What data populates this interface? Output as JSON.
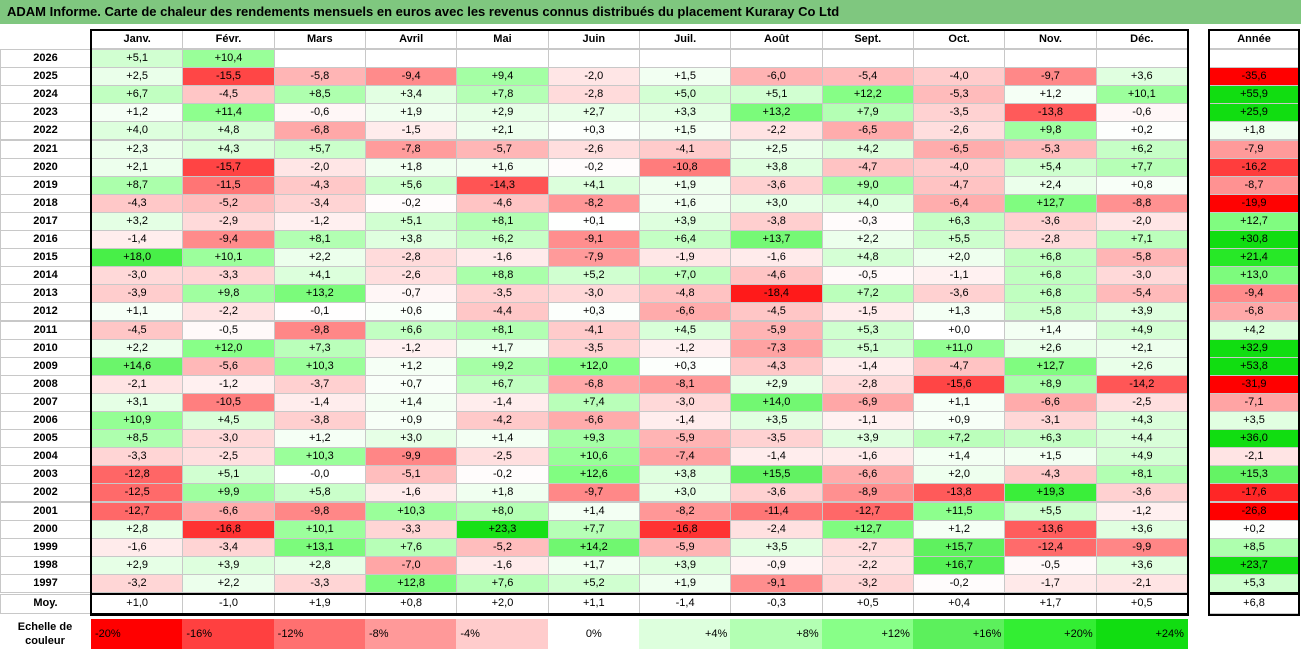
{
  "title": "ADAM Informe. Carte de chaleur des rendements mensuels en euros avec les revenus connus distribués du placement Kuraray Co Ltd",
  "chart_data": {
    "type": "heatmap",
    "title": "ADAM Informe. Carte de chaleur des rendements mensuels en euros avec les revenus connus distribués du placement Kuraray Co Ltd",
    "columns": [
      "Janv.",
      "Févr.",
      "Mars",
      "Avril",
      "Mai",
      "Juin",
      "Juil.",
      "Août",
      "Sept.",
      "Oct.",
      "Nov.",
      "Déc."
    ],
    "year_column_label": "Année",
    "average_row_label": "Moy.",
    "rows": [
      {
        "year": "2026",
        "values": [
          "+5,1",
          "+10,4",
          "",
          "",
          "",
          "",
          "",
          "",
          "",
          "",
          "",
          ""
        ],
        "annual": ""
      },
      {
        "year": "2025",
        "values": [
          "+2,5",
          "-15,5",
          "-5,8",
          "-9,4",
          "+9,4",
          "-2,0",
          "+1,5",
          "-6,0",
          "-5,4",
          "-4,0",
          "-9,7",
          "+3,6"
        ],
        "annual": "-35,6"
      },
      {
        "year": "2024",
        "values": [
          "+6,7",
          "-4,5",
          "+8,5",
          "+3,4",
          "+7,8",
          "-2,8",
          "+5,0",
          "+5,1",
          "+12,2",
          "-5,3",
          "+1,2",
          "+10,1"
        ],
        "annual": "+55,9"
      },
      {
        "year": "2023",
        "values": [
          "+1,2",
          "+11,4",
          "-0,6",
          "+1,9",
          "+2,9",
          "+2,7",
          "+3,3",
          "+13,2",
          "+7,9",
          "-3,5",
          "-13,8",
          "-0,6"
        ],
        "annual": "+25,9"
      },
      {
        "year": "2022",
        "values": [
          "+4,0",
          "+4,8",
          "-6,8",
          "-1,5",
          "+2,1",
          "+0,3",
          "+1,5",
          "-2,2",
          "-6,5",
          "-2,6",
          "+9,8",
          "+0,2"
        ],
        "annual": "+1,8"
      },
      {
        "year": "2021",
        "values": [
          "+2,3",
          "+4,3",
          "+5,7",
          "-7,8",
          "-5,7",
          "-2,6",
          "-4,1",
          "+2,5",
          "+4,2",
          "-6,5",
          "-5,3",
          "+6,2"
        ],
        "annual": "-7,9"
      },
      {
        "year": "2020",
        "values": [
          "+2,1",
          "-15,7",
          "-2,0",
          "+1,8",
          "+1,6",
          "-0,2",
          "-10,8",
          "+3,8",
          "-4,7",
          "-4,0",
          "+5,4",
          "+7,7"
        ],
        "annual": "-16,2"
      },
      {
        "year": "2019",
        "values": [
          "+8,7",
          "-11,5",
          "-4,3",
          "+5,6",
          "-14,3",
          "+4,1",
          "+1,9",
          "-3,6",
          "+9,0",
          "-4,7",
          "+2,4",
          "+0,8"
        ],
        "annual": "-8,7"
      },
      {
        "year": "2018",
        "values": [
          "-4,3",
          "-5,2",
          "-3,4",
          "-0,2",
          "-4,6",
          "-8,2",
          "+1,6",
          "+3,0",
          "+4,0",
          "-6,4",
          "+12,7",
          "-8,8"
        ],
        "annual": "-19,9"
      },
      {
        "year": "2017",
        "values": [
          "+3,2",
          "-2,9",
          "-1,2",
          "+5,1",
          "+8,1",
          "+0,1",
          "+3,9",
          "-3,8",
          "-0,3",
          "+6,3",
          "-3,6",
          "-2,0"
        ],
        "annual": "+12,7"
      },
      {
        "year": "2016",
        "values": [
          "-1,4",
          "-9,4",
          "+8,1",
          "+3,8",
          "+6,2",
          "-9,1",
          "+6,4",
          "+13,7",
          "+2,2",
          "+5,5",
          "-2,8",
          "+7,1"
        ],
        "annual": "+30,8"
      },
      {
        "year": "2015",
        "values": [
          "+18,0",
          "+10,1",
          "+2,2",
          "-2,8",
          "-1,6",
          "-7,9",
          "-1,9",
          "-1,6",
          "+4,8",
          "+2,0",
          "+6,8",
          "-5,8"
        ],
        "annual": "+21,4"
      },
      {
        "year": "2014",
        "values": [
          "-3,0",
          "-3,3",
          "+4,1",
          "-2,6",
          "+8,8",
          "+5,2",
          "+7,0",
          "-4,6",
          "-0,5",
          "-1,1",
          "+6,8",
          "-3,0"
        ],
        "annual": "+13,0"
      },
      {
        "year": "2013",
        "values": [
          "-3,9",
          "+9,8",
          "+13,2",
          "-0,7",
          "-3,5",
          "-3,0",
          "-4,8",
          "-18,4",
          "+7,2",
          "-3,6",
          "+6,8",
          "-5,4"
        ],
        "annual": "-9,4"
      },
      {
        "year": "2012",
        "values": [
          "+1,1",
          "-2,2",
          "-0,1",
          "+0,6",
          "-4,4",
          "+0,3",
          "-6,6",
          "-4,5",
          "-1,5",
          "+1,3",
          "+5,8",
          "+3,9"
        ],
        "annual": "-6,8"
      },
      {
        "year": "2011",
        "values": [
          "-4,5",
          "-0,5",
          "-9,8",
          "+6,6",
          "+8,1",
          "-4,1",
          "+4,5",
          "-5,9",
          "+5,3",
          "+0,0",
          "+1,4",
          "+4,9"
        ],
        "annual": "+4,2"
      },
      {
        "year": "2010",
        "values": [
          "+2,2",
          "+12,0",
          "+7,3",
          "-1,2",
          "+1,7",
          "-3,5",
          "-1,2",
          "-7,3",
          "+5,1",
          "+11,0",
          "+2,6",
          "+2,1"
        ],
        "annual": "+32,9"
      },
      {
        "year": "2009",
        "values": [
          "+14,6",
          "-5,6",
          "+10,3",
          "+1,2",
          "+9,2",
          "+12,0",
          "+0,3",
          "-4,3",
          "-1,4",
          "-4,7",
          "+12,7",
          "+2,6"
        ],
        "annual": "+53,8"
      },
      {
        "year": "2008",
        "values": [
          "-2,1",
          "-1,2",
          "-3,7",
          "+0,7",
          "+6,7",
          "-6,8",
          "-8,1",
          "+2,9",
          "-2,8",
          "-15,6",
          "+8,9",
          "-14,2"
        ],
        "annual": "-31,9"
      },
      {
        "year": "2007",
        "values": [
          "+3,1",
          "-10,5",
          "-1,4",
          "+1,4",
          "-1,4",
          "+7,4",
          "-3,0",
          "+14,0",
          "-6,9",
          "+1,1",
          "-6,6",
          "-2,5"
        ],
        "annual": "-7,1"
      },
      {
        "year": "2006",
        "values": [
          "+10,9",
          "+4,5",
          "-3,8",
          "+0,9",
          "-4,2",
          "-6,6",
          "-1,4",
          "+3,5",
          "-1,1",
          "+0,9",
          "-3,1",
          "+4,3"
        ],
        "annual": "+3,5"
      },
      {
        "year": "2005",
        "values": [
          "+8,5",
          "-3,0",
          "+1,2",
          "+3,0",
          "+1,4",
          "+9,3",
          "-5,9",
          "-3,5",
          "+3,9",
          "+7,2",
          "+6,3",
          "+4,4"
        ],
        "annual": "+36,0"
      },
      {
        "year": "2004",
        "values": [
          "-3,3",
          "-2,5",
          "+10,3",
          "-9,9",
          "-2,5",
          "+10,6",
          "-7,4",
          "-1,4",
          "-1,6",
          "+1,4",
          "+1,5",
          "+4,9"
        ],
        "annual": "-2,1"
      },
      {
        "year": "2003",
        "values": [
          "-12,8",
          "+5,1",
          "-0,0",
          "-5,1",
          "-0,2",
          "+12,6",
          "+3,8",
          "+15,5",
          "-6,6",
          "+2,0",
          "-4,3",
          "+8,1"
        ],
        "annual": "+15,3"
      },
      {
        "year": "2002",
        "values": [
          "-12,5",
          "+9,9",
          "+5,8",
          "-1,6",
          "+1,8",
          "-9,7",
          "+3,0",
          "-3,6",
          "-8,9",
          "-13,8",
          "+19,3",
          "-3,6"
        ],
        "annual": "-17,6"
      },
      {
        "year": "2001",
        "values": [
          "-12,7",
          "-6,6",
          "-9,8",
          "+10,3",
          "+8,0",
          "+1,4",
          "-8,2",
          "-11,4",
          "-12,7",
          "+11,5",
          "+5,5",
          "-1,2"
        ],
        "annual": "-26,8"
      },
      {
        "year": "2000",
        "values": [
          "+2,8",
          "-16,8",
          "+10,1",
          "-3,3",
          "+23,3",
          "+7,7",
          "-16,8",
          "-2,4",
          "+12,7",
          "+1,2",
          "-13,6",
          "+3,6"
        ],
        "annual": "+0,2"
      },
      {
        "year": "1999",
        "values": [
          "-1,6",
          "-3,4",
          "+13,1",
          "+7,6",
          "-5,2",
          "+14,2",
          "-5,9",
          "+3,5",
          "-2,7",
          "+15,7",
          "-12,4",
          "-9,9"
        ],
        "annual": "+8,5"
      },
      {
        "year": "1998",
        "values": [
          "+2,9",
          "+3,9",
          "+2,8",
          "-7,0",
          "-1,6",
          "+1,7",
          "+3,9",
          "-0,9",
          "-2,2",
          "+16,7",
          "-0,5",
          "+3,6"
        ],
        "annual": "+23,7"
      },
      {
        "year": "1997",
        "values": [
          "-3,2",
          "+2,2",
          "-3,3",
          "+12,8",
          "+7,6",
          "+5,2",
          "+1,9",
          "-9,1",
          "-3,2",
          "-0,2",
          "-1,7",
          "-2,1"
        ],
        "annual": "+5,3"
      }
    ],
    "average": {
      "values": [
        "+1,0",
        "-1,0",
        "+1,9",
        "+0,8",
        "+2,0",
        "+1,1",
        "-1,4",
        "-0,3",
        "+0,5",
        "+0,4",
        "+1,7",
        "+0,5"
      ],
      "annual": "+6,8"
    },
    "legend": {
      "label_line1": "Echelle de",
      "label_line2": "couleur",
      "items": [
        {
          "label": "-20%",
          "value": -20,
          "color": "#ff0000"
        },
        {
          "label": "-16%",
          "value": -16,
          "color": "#ff4040"
        },
        {
          "label": "-12%",
          "value": -12,
          "color": "#ff7070"
        },
        {
          "label": "-8%",
          "value": -8,
          "color": "#ff9999"
        },
        {
          "label": "-4%",
          "value": -4,
          "color": "#ffcccc"
        },
        {
          "label": "0%",
          "value": 0,
          "color": "#ffffff"
        },
        {
          "label": "+4%",
          "value": 4,
          "color": "#ddffdd"
        },
        {
          "label": "+8%",
          "value": 8,
          "color": "#b3ffb3"
        },
        {
          "label": "+12%",
          "value": 12,
          "color": "#88ff88"
        },
        {
          "label": "+16%",
          "value": 16,
          "color": "#5cf05c"
        },
        {
          "label": "+20%",
          "value": 20,
          "color": "#33ee33"
        },
        {
          "label": "+24%",
          "value": 24,
          "color": "#11dd11"
        }
      ]
    }
  }
}
